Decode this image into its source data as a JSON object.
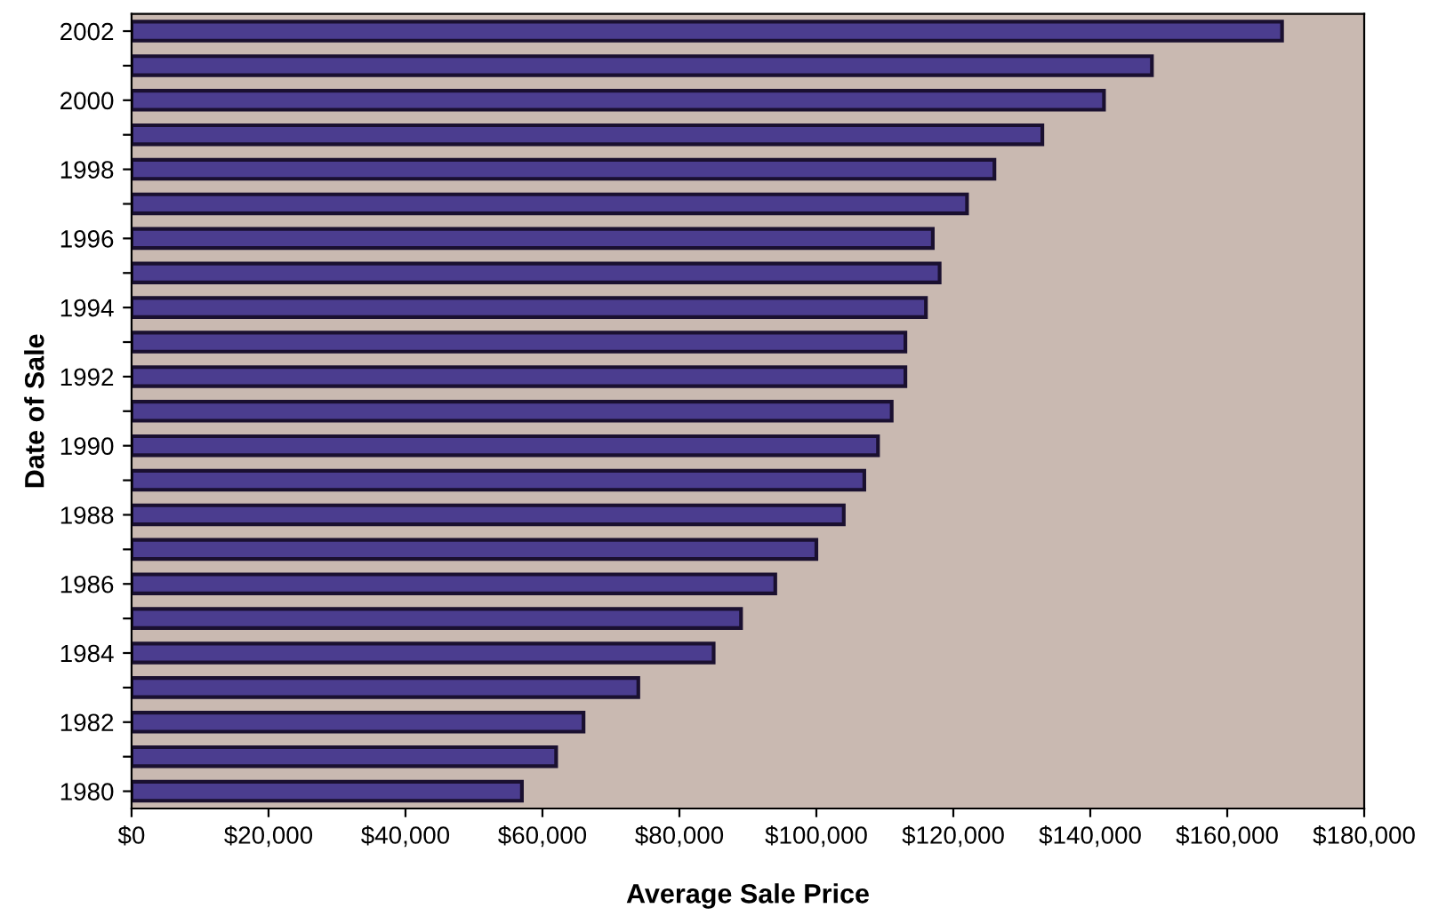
{
  "chart_data": {
    "type": "bar",
    "orientation": "horizontal",
    "xlabel": "Average Sale Price",
    "ylabel": "Date of Sale",
    "categories": [
      "2002",
      null,
      "2000",
      null,
      "1998",
      null,
      "1996",
      null,
      "1994",
      null,
      "1992",
      null,
      "1990",
      null,
      "1988",
      null,
      "1986",
      null,
      "1984",
      null,
      "1982",
      null,
      "1980"
    ],
    "values": [
      168000,
      149000,
      142000,
      133000,
      126000,
      122000,
      117000,
      118000,
      116000,
      113000,
      113000,
      111000,
      109000,
      107000,
      104000,
      100000,
      94000,
      89000,
      85000,
      74000,
      66000,
      62000,
      57000
    ],
    "color": "#4b3d8f",
    "xlim": [
      0,
      180000
    ],
    "xticks": [
      {
        "value": 0,
        "label": "$0"
      },
      {
        "value": 20000,
        "label": "$20,000"
      },
      {
        "value": 40000,
        "label": "$40,000"
      },
      {
        "value": 60000,
        "label": "$60,000"
      },
      {
        "value": 80000,
        "label": "$80,000"
      },
      {
        "value": 100000,
        "label": "$100,000"
      },
      {
        "value": 120000,
        "label": "$120,000"
      },
      {
        "value": 140000,
        "label": "$140,000"
      },
      {
        "value": 160000,
        "label": "$160,000"
      },
      {
        "value": 180000,
        "label": "$180,000"
      }
    ],
    "grid": false,
    "legend": false
  }
}
